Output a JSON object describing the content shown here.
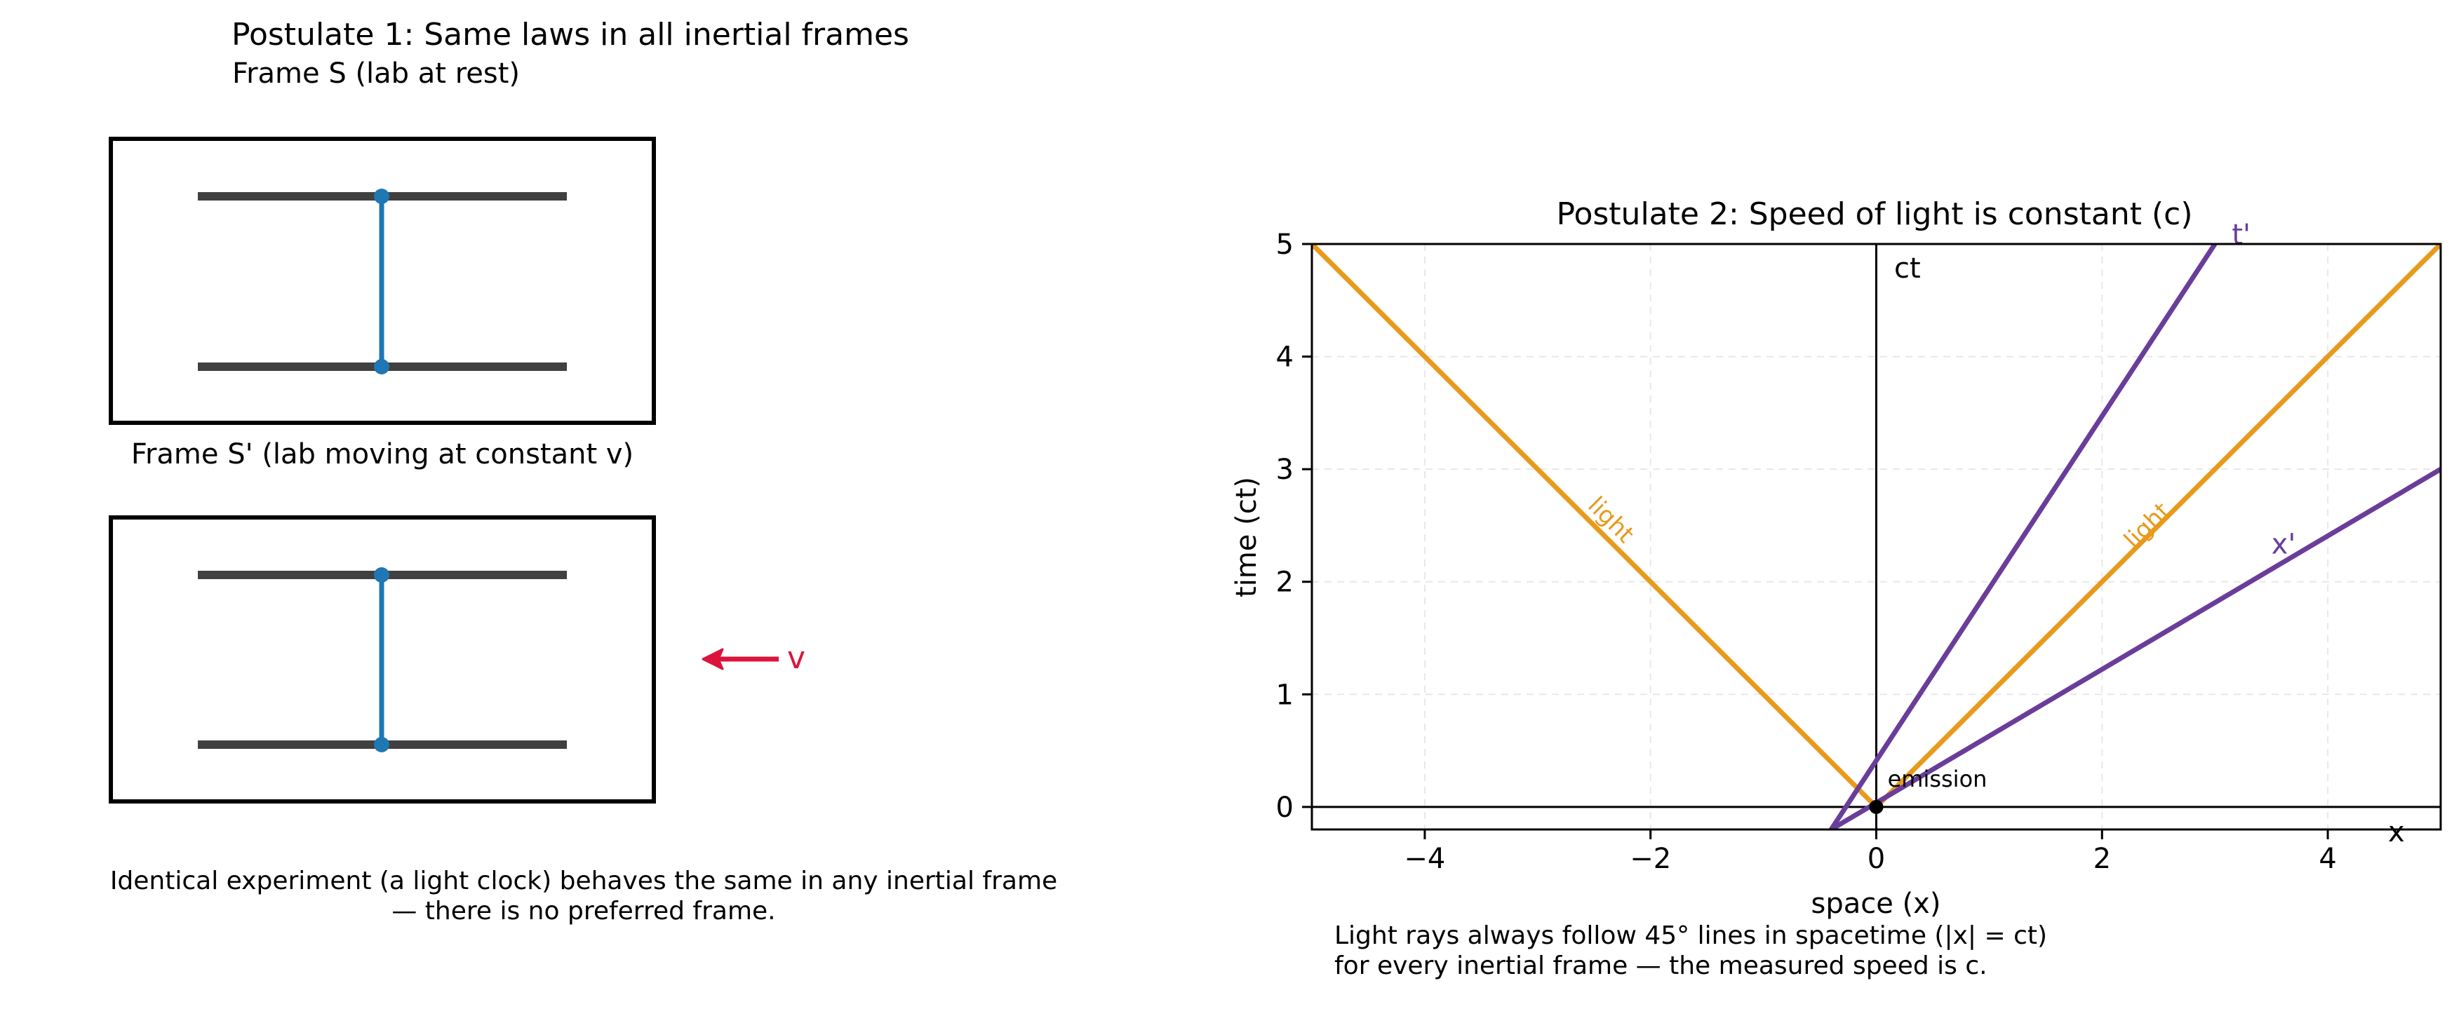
{
  "left_panel": {
    "title": "Postulate 1: Same laws in all inertial frames",
    "frame_s_label": "Frame S (lab at rest)",
    "frame_s_prime_label": "Frame S' (lab moving at constant v)",
    "velocity_label": "v",
    "caption_line1": "Identical experiment (a light clock) behaves the same in any inertial frame",
    "caption_line2": "— there is no preferred frame."
  },
  "right_panel": {
    "caption_line1": "Light rays always follow 45° lines in spacetime (|x| = ct)",
    "caption_line2": "for every inertial frame — the measured speed is c."
  },
  "colors": {
    "clock_rod": "#1f77b4",
    "mirror": "#404040",
    "velocity_arrow": "#dc143c",
    "light": "#e89a1c",
    "boosted_axes": "#6a3d9a",
    "axis": "#000000",
    "grid": "#e8e8e8"
  },
  "chart_data": {
    "type": "line",
    "title": "Postulate 2: Speed of light is constant (c)",
    "xlabel": "space (x)",
    "ylabel": "time (ct)",
    "xlim": [
      -5,
      5
    ],
    "ylim": [
      -0.2,
      5
    ],
    "xticks": [
      -4,
      -2,
      0,
      2,
      4
    ],
    "yticks": [
      0,
      1,
      2,
      3,
      4,
      5
    ],
    "grid": true,
    "axis_labels_inline": {
      "time_axis": "ct",
      "space_axis": "x"
    },
    "series": [
      {
        "name": "light",
        "kind": "light",
        "points": [
          [
            0,
            0
          ],
          [
            -5,
            5
          ]
        ]
      },
      {
        "name": "light",
        "kind": "light",
        "points": [
          [
            0,
            0
          ],
          [
            5,
            5
          ]
        ]
      },
      {
        "name": "t'",
        "kind": "boosted",
        "points": [
          [
            -0.4,
            -0.2
          ],
          [
            3.0,
            5.0
          ]
        ]
      },
      {
        "name": "x'",
        "kind": "boosted",
        "points": [
          [
            -0.4,
            -0.2
          ],
          [
            5.0,
            3.0
          ]
        ]
      }
    ],
    "annotations": [
      {
        "text": "light",
        "x": -2.4,
        "y": 2.5,
        "rotation_deg": 45
      },
      {
        "text": "light",
        "x": 2.45,
        "y": 2.45,
        "rotation_deg": -45
      },
      {
        "text": "t'",
        "x": 3.15,
        "y": 5.0
      },
      {
        "text": "x'",
        "x": 3.5,
        "y": 2.25
      },
      {
        "text": "emission",
        "x": 0.1,
        "y": 0.18
      }
    ],
    "event": {
      "name": "emission",
      "x": 0,
      "y": 0
    }
  }
}
